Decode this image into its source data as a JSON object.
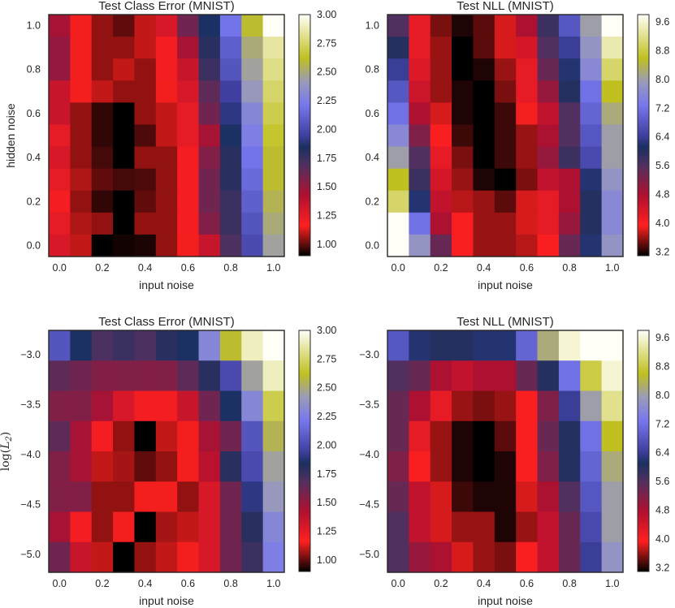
{
  "chart_data": [
    {
      "type": "heatmap",
      "title": "Test Class Error (MNIST)",
      "xlabel": "input noise",
      "ylabel": "hidden noise",
      "xticks": [
        "0.0",
        "0.2",
        "0.4",
        "0.6",
        "0.8",
        "1.0"
      ],
      "yticks": [
        "1.0",
        "0.8",
        "0.6",
        "0.4",
        "0.2",
        "0.0"
      ],
      "colorbar_ticks": [
        "3.00",
        "2.75",
        "2.50",
        "2.25",
        "2.00",
        "1.75",
        "1.50",
        "1.25",
        "1.00"
      ],
      "colorbar_range": [
        0.9,
        3.0
      ],
      "values": [
        [
          1.45,
          1.15,
          1.05,
          1.0,
          1.1,
          1.3,
          1.6,
          1.85,
          2.2,
          2.6,
          3.0
        ],
        [
          1.5,
          1.15,
          1.05,
          1.05,
          1.1,
          1.2,
          1.45,
          1.8,
          2.1,
          2.5,
          2.85
        ],
        [
          1.5,
          1.15,
          1.05,
          1.1,
          1.05,
          1.2,
          1.35,
          1.75,
          2.05,
          2.45,
          2.8
        ],
        [
          1.35,
          1.15,
          1.1,
          1.05,
          1.05,
          1.15,
          1.3,
          1.65,
          1.95,
          2.4,
          2.75
        ],
        [
          1.35,
          1.05,
          0.95,
          0.9,
          1.05,
          1.1,
          1.25,
          1.6,
          1.9,
          2.3,
          2.7
        ],
        [
          1.25,
          1.05,
          0.95,
          0.9,
          0.98,
          1.1,
          1.25,
          1.45,
          1.85,
          2.25,
          2.65
        ],
        [
          1.3,
          1.05,
          0.97,
          0.9,
          1.05,
          1.05,
          1.2,
          1.55,
          1.8,
          2.2,
          2.6
        ],
        [
          1.25,
          1.08,
          1.0,
          0.97,
          0.98,
          1.05,
          1.2,
          1.6,
          1.8,
          2.15,
          2.6
        ],
        [
          1.2,
          1.05,
          0.95,
          0.9,
          1.0,
          1.05,
          1.2,
          1.6,
          1.75,
          2.1,
          2.55
        ],
        [
          1.25,
          1.08,
          1.05,
          0.9,
          1.05,
          1.05,
          1.2,
          1.55,
          1.75,
          2.05,
          2.5
        ],
        [
          1.3,
          1.1,
          0.9,
          0.92,
          0.93,
          1.05,
          1.15,
          1.35,
          1.7,
          2.0,
          2.45
        ]
      ]
    },
    {
      "type": "heatmap",
      "title": "Test NLL (MNIST)",
      "xlabel": "input noise",
      "ylabel": "",
      "xticks": [
        "0.0",
        "0.2",
        "0.4",
        "0.6",
        "0.8",
        "1.0"
      ],
      "yticks": [
        "1.0",
        "0.8",
        "0.6",
        "0.4",
        "0.2",
        "0.0"
      ],
      "colorbar_ticks": [
        "9.6",
        "8.8",
        "8.0",
        "7.2",
        "6.4",
        "5.6",
        "4.8",
        "4.0",
        "3.2"
      ],
      "colorbar_range": [
        3.1,
        9.8
      ],
      "values": [
        [
          5.6,
          4.2,
          3.5,
          3.2,
          3.4,
          3.8,
          4.8,
          5.8,
          6.8,
          8.0,
          9.8
        ],
        [
          6.0,
          4.2,
          3.6,
          3.1,
          3.4,
          3.8,
          4.4,
          5.6,
          6.4,
          7.8,
          9.4
        ],
        [
          6.4,
          4.3,
          3.6,
          3.1,
          3.2,
          3.6,
          4.2,
          5.4,
          6.2,
          7.6,
          9.0
        ],
        [
          6.8,
          4.5,
          3.6,
          3.2,
          3.1,
          3.5,
          4.2,
          5.0,
          6.0,
          7.2,
          8.6
        ],
        [
          7.2,
          4.8,
          3.8,
          3.2,
          3.1,
          3.3,
          3.9,
          4.6,
          5.6,
          7.0,
          8.2
        ],
        [
          7.6,
          5.2,
          4.0,
          3.3,
          3.1,
          3.3,
          3.6,
          4.8,
          5.6,
          6.8,
          8.0
        ],
        [
          8.0,
          5.6,
          4.2,
          3.5,
          3.1,
          3.3,
          3.6,
          5.0,
          5.8,
          6.6,
          8.0
        ],
        [
          8.6,
          5.8,
          4.4,
          3.6,
          3.2,
          3.1,
          3.5,
          4.6,
          4.8,
          6.2,
          7.8
        ],
        [
          9.0,
          6.2,
          4.6,
          3.7,
          3.6,
          3.4,
          3.8,
          4.2,
          4.8,
          6.0,
          7.6
        ],
        [
          9.8,
          7.2,
          4.8,
          4.0,
          3.6,
          3.6,
          3.8,
          4.2,
          5.0,
          6.0,
          7.6
        ],
        [
          9.8,
          7.8,
          5.4,
          4.0,
          3.6,
          3.6,
          3.7,
          4.0,
          5.4,
          6.2,
          7.8
        ]
      ]
    },
    {
      "type": "heatmap",
      "title": "Test Class Error (MNIST)",
      "xlabel": "input noise",
      "ylabel": "log(L2)",
      "xticks": [
        "0.0",
        "0.2",
        "0.4",
        "0.6",
        "0.8",
        "1.0"
      ],
      "yticks": [
        "−3.0",
        "−3.5",
        "−4.0",
        "−4.5",
        "−5.0"
      ],
      "colorbar_ticks": [
        "3.00",
        "2.75",
        "2.50",
        "2.25",
        "2.00",
        "1.75",
        "1.50",
        "1.25",
        "1.00"
      ],
      "colorbar_range": [
        0.9,
        3.0
      ],
      "values": [
        [
          2.05,
          1.85,
          1.7,
          1.75,
          1.7,
          1.8,
          1.85,
          2.3,
          2.6,
          2.9,
          3.0
        ],
        [
          1.65,
          1.6,
          1.55,
          1.55,
          1.55,
          1.55,
          1.65,
          1.8,
          2.0,
          2.45,
          2.9
        ],
        [
          1.55,
          1.55,
          1.45,
          1.3,
          1.2,
          1.2,
          1.35,
          1.6,
          1.85,
          2.3,
          2.7
        ],
        [
          1.65,
          1.45,
          1.2,
          1.05,
          0.9,
          1.1,
          1.15,
          1.45,
          1.6,
          2.05,
          2.55
        ],
        [
          1.55,
          1.45,
          1.1,
          1.07,
          1.0,
          1.05,
          1.15,
          1.4,
          1.8,
          2.0,
          2.45
        ],
        [
          1.55,
          1.55,
          1.05,
          1.05,
          1.15,
          1.15,
          1.05,
          1.3,
          1.6,
          1.9,
          2.4
        ],
        [
          1.45,
          1.2,
          1.05,
          1.15,
          0.9,
          1.07,
          1.1,
          1.3,
          1.6,
          1.8,
          2.3
        ],
        [
          1.6,
          1.35,
          1.1,
          0.88,
          1.05,
          1.1,
          1.15,
          1.3,
          1.6,
          1.75,
          2.25
        ]
      ]
    },
    {
      "type": "heatmap",
      "title": "Test NLL (MNIST)",
      "xlabel": "input noise",
      "ylabel": "",
      "xticks": [
        "0.0",
        "0.2",
        "0.4",
        "0.6",
        "0.8",
        "1.0"
      ],
      "yticks": [
        "−3.0",
        "−3.5",
        "−4.0",
        "−4.5",
        "−5.0"
      ],
      "colorbar_ticks": [
        "9.6",
        "8.8",
        "8.0",
        "7.2",
        "6.4",
        "5.6",
        "4.8",
        "4.0",
        "3.2"
      ],
      "colorbar_range": [
        3.1,
        9.8
      ],
      "values": [
        [
          6.8,
          6.2,
          6.0,
          6.0,
          6.2,
          6.2,
          7.0,
          8.2,
          9.6,
          9.8,
          9.8
        ],
        [
          5.6,
          5.4,
          4.8,
          4.6,
          4.8,
          4.8,
          5.4,
          6.0,
          7.2,
          8.8,
          9.6
        ],
        [
          5.4,
          4.8,
          4.2,
          3.6,
          3.5,
          3.6,
          4.0,
          5.2,
          6.4,
          8.0,
          9.2
        ],
        [
          5.4,
          4.2,
          3.6,
          3.2,
          3.1,
          3.4,
          4.0,
          5.4,
          6.0,
          7.2,
          8.6
        ],
        [
          5.2,
          4.0,
          3.6,
          3.2,
          3.1,
          3.2,
          4.0,
          5.2,
          6.0,
          7.0,
          8.2
        ],
        [
          5.4,
          4.6,
          3.8,
          3.3,
          3.2,
          3.2,
          3.8,
          4.8,
          5.6,
          6.8,
          8.0
        ],
        [
          5.6,
          4.6,
          3.8,
          3.6,
          3.6,
          3.2,
          3.6,
          4.6,
          5.4,
          6.6,
          8.0
        ],
        [
          5.6,
          5.0,
          4.8,
          3.8,
          3.6,
          3.5,
          4.0,
          4.6,
          5.4,
          6.4,
          7.8
        ]
      ]
    }
  ]
}
